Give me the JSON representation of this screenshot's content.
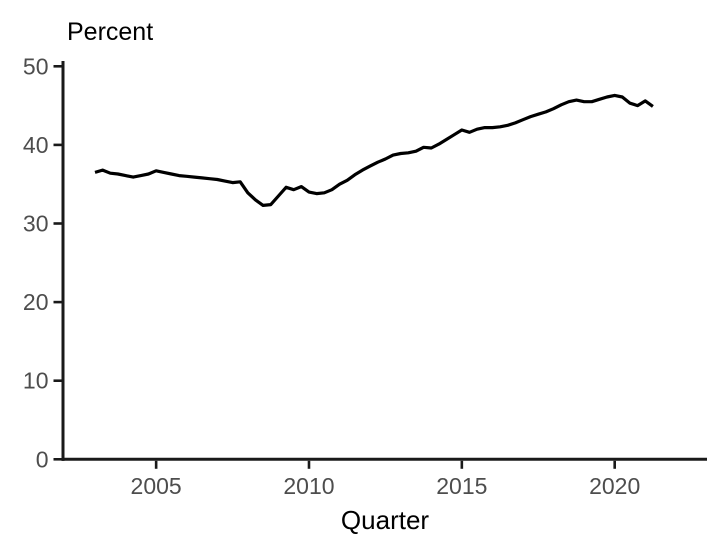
{
  "page": {
    "background_color": "#ffffff"
  },
  "chart_data": {
    "type": "line",
    "title": "",
    "ylabel": "Percent",
    "xlabel": "Quarter",
    "legend": null,
    "grid": false,
    "x_ticks": [
      2005,
      2010,
      2015,
      2020
    ],
    "y_ticks": [
      0,
      10,
      20,
      30,
      40,
      50
    ],
    "ylim": [
      0,
      50
    ],
    "xlim": [
      2001.9,
      2023.0
    ],
    "frequency": "quarterly",
    "x_start_year": 2003,
    "x_step_years": 0.25,
    "x_start_label": "2003 Q1",
    "x_end_label": "2021 Q2",
    "line_color": "#000000",
    "axis_color": "#1a1a1a",
    "tick_label_color": "#4d4d4d",
    "series": [
      {
        "name": "Percent",
        "values": [
          36.5,
          36.8,
          36.4,
          36.3,
          36.1,
          35.9,
          36.1,
          36.3,
          36.7,
          36.5,
          36.3,
          36.1,
          36.0,
          35.9,
          35.8,
          35.7,
          35.6,
          35.4,
          35.2,
          35.3,
          33.9,
          33.0,
          32.3,
          32.4,
          33.5,
          34.6,
          34.3,
          34.7,
          34.0,
          33.8,
          33.9,
          34.3,
          35.0,
          35.5,
          36.2,
          36.8,
          37.3,
          37.8,
          38.2,
          38.7,
          38.9,
          39.0,
          39.2,
          39.7,
          39.6,
          40.1,
          40.7,
          41.3,
          41.9,
          41.6,
          42.0,
          42.2,
          42.2,
          42.3,
          42.5,
          42.8,
          43.2,
          43.6,
          43.9,
          44.2,
          44.6,
          45.1,
          45.5,
          45.7,
          45.5,
          45.5,
          45.8,
          46.1,
          46.3,
          46.1,
          45.3,
          45.0,
          45.6,
          44.9
        ]
      }
    ]
  }
}
